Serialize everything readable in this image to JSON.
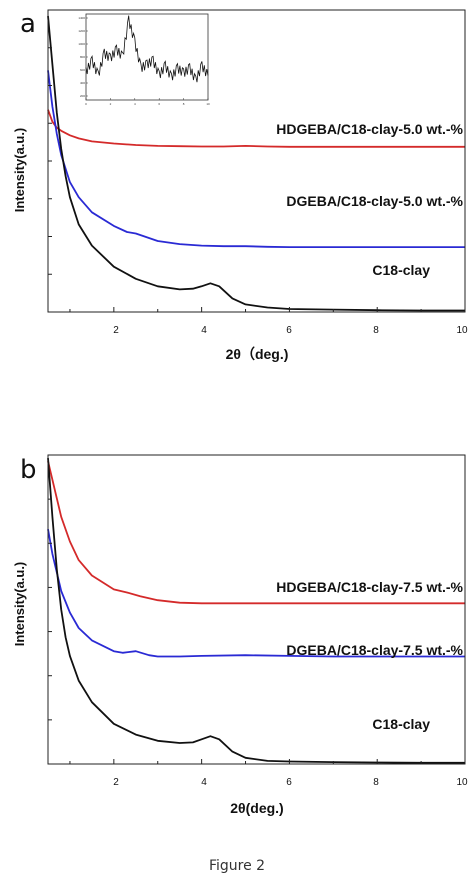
{
  "figure": {
    "caption": "Figure 2"
  },
  "chart_data": [
    {
      "type": "line",
      "panel": "a",
      "xlabel": "2θ (deg.)",
      "ylabel": "Intensity(a.u.)",
      "xlim": [
        0.5,
        10
      ],
      "xticks": [
        2,
        4,
        6,
        8,
        10
      ],
      "yticks_labeled": false,
      "grid": false,
      "legend": "labels placed directly on the curves",
      "series": [
        {
          "name": "HDGEBA/C18-clay-5.0 wt.-%",
          "color": "#d42a2a",
          "x": [
            0.5,
            0.6,
            0.7,
            0.8,
            1.0,
            1.2,
            1.5,
            2.0,
            2.5,
            3.0,
            3.5,
            4.0,
            4.5,
            5.0,
            5.5,
            6.0,
            7.0,
            8.0,
            9.0,
            10.0
          ],
          "y": [
            0.67,
            0.63,
            0.61,
            0.6,
            0.585,
            0.575,
            0.565,
            0.558,
            0.553,
            0.55,
            0.549,
            0.548,
            0.548,
            0.55,
            0.548,
            0.547,
            0.547,
            0.547,
            0.547,
            0.547
          ]
        },
        {
          "name": "DGEBA/C18-clay-5.0 wt.-%",
          "color": "#2a2ad4",
          "x": [
            0.5,
            0.6,
            0.7,
            0.8,
            1.0,
            1.2,
            1.5,
            2.0,
            2.3,
            2.5,
            2.7,
            3.0,
            3.5,
            4.0,
            4.5,
            5.0,
            5.5,
            6.0,
            7.0,
            8.0,
            9.0,
            10.0
          ],
          "y": [
            0.8,
            0.68,
            0.59,
            0.52,
            0.43,
            0.38,
            0.33,
            0.285,
            0.265,
            0.26,
            0.25,
            0.235,
            0.225,
            0.22,
            0.218,
            0.218,
            0.216,
            0.215,
            0.215,
            0.215,
            0.215,
            0.215
          ]
        },
        {
          "name": "C18-clay",
          "color": "#111111",
          "x": [
            0.5,
            0.6,
            0.7,
            0.8,
            0.9,
            1.0,
            1.2,
            1.5,
            2.0,
            2.5,
            3.0,
            3.5,
            3.8,
            4.0,
            4.2,
            4.4,
            4.7,
            5.0,
            5.5,
            6.0,
            7.0,
            8.0,
            9.0,
            10.0
          ],
          "y": [
            0.98,
            0.82,
            0.66,
            0.54,
            0.45,
            0.38,
            0.29,
            0.22,
            0.15,
            0.11,
            0.085,
            0.075,
            0.077,
            0.085,
            0.095,
            0.085,
            0.045,
            0.025,
            0.015,
            0.01,
            0.008,
            0.006,
            0.005,
            0.005
          ]
        }
      ],
      "inset": {
        "type": "line",
        "xlim": [
          0,
          10
        ],
        "x_ticks": [
          "0",
          "2",
          "4",
          "6",
          "8",
          "10"
        ],
        "y_ticks": [
          "1400",
          "1200",
          "1000",
          "800",
          "600",
          "400",
          "200"
        ],
        "series": [
          {
            "color": "#111111",
            "x": [
              0,
              0.5,
              1,
              1.5,
              2,
              2.5,
              3,
              3.5,
              4,
              4.5,
              5,
              5.5,
              6,
              6.5,
              7,
              7.5,
              8,
              8.5,
              9,
              9.5,
              10
            ],
            "y": [
              0.3,
              0.45,
              0.25,
              0.55,
              0.48,
              0.6,
              0.5,
              1.0,
              0.7,
              0.35,
              0.4,
              0.45,
              0.25,
              0.38,
              0.22,
              0.35,
              0.28,
              0.35,
              0.18,
              0.38,
              0.25
            ]
          }
        ]
      }
    },
    {
      "type": "line",
      "panel": "b",
      "xlabel": "2θ(deg.)",
      "ylabel": "Intensity(a.u.)",
      "xlim": [
        0.5,
        10
      ],
      "xticks": [
        2,
        4,
        6,
        8,
        10
      ],
      "yticks_labeled": false,
      "grid": false,
      "legend": "labels placed directly on the curves",
      "series": [
        {
          "name": "HDGEBA/C18-clay-7.5 wt.-%",
          "color": "#d42a2a",
          "x": [
            0.5,
            0.6,
            0.7,
            0.8,
            1.0,
            1.2,
            1.5,
            2.0,
            2.3,
            2.6,
            3.0,
            3.5,
            4.0,
            4.5,
            5.0,
            6.0,
            7.0,
            8.0,
            9.0,
            10.0
          ],
          "y": [
            0.98,
            0.92,
            0.86,
            0.8,
            0.72,
            0.66,
            0.61,
            0.565,
            0.555,
            0.543,
            0.53,
            0.522,
            0.52,
            0.52,
            0.52,
            0.52,
            0.52,
            0.52,
            0.52,
            0.52
          ]
        },
        {
          "name": "DGEBA/C18-clay-7.5 wt.-%",
          "color": "#2a2ad4",
          "x": [
            0.5,
            0.6,
            0.7,
            0.8,
            1.0,
            1.2,
            1.5,
            2.0,
            2.2,
            2.5,
            2.8,
            3.0,
            3.5,
            4.0,
            5.0,
            6.0,
            7.0,
            8.0,
            9.0,
            10.0
          ],
          "y": [
            0.76,
            0.68,
            0.62,
            0.56,
            0.49,
            0.44,
            0.4,
            0.365,
            0.36,
            0.365,
            0.352,
            0.348,
            0.348,
            0.35,
            0.352,
            0.35,
            0.348,
            0.348,
            0.348,
            0.348
          ]
        },
        {
          "name": "C18-clay",
          "color": "#111111",
          "x": [
            0.5,
            0.6,
            0.7,
            0.8,
            0.9,
            1.0,
            1.2,
            1.5,
            2.0,
            2.5,
            3.0,
            3.5,
            3.8,
            4.0,
            4.2,
            4.4,
            4.7,
            5.0,
            5.5,
            6.0,
            7.0,
            8.0,
            9.0,
            10.0
          ],
          "y": [
            0.99,
            0.8,
            0.63,
            0.5,
            0.41,
            0.35,
            0.27,
            0.2,
            0.13,
            0.095,
            0.075,
            0.068,
            0.07,
            0.08,
            0.09,
            0.08,
            0.04,
            0.02,
            0.01,
            0.008,
            0.006,
            0.005,
            0.004,
            0.004
          ]
        }
      ]
    }
  ],
  "panel_a": {
    "letter": "a",
    "ylabel": "Intensity(a.u.)",
    "xlabel": "2θ（deg.)",
    "xtick_labels": [
      "2",
      "4",
      "6",
      "8",
      "10"
    ],
    "labels": [
      "HDGEBA/C18-clay-5.0 wt.-%",
      "DGEBA/C18-clay-5.0 wt.-%",
      "C18-clay"
    ]
  },
  "panel_b": {
    "letter": "b",
    "ylabel": "Intensity(a.u.)",
    "xlabel": "2θ(deg.)",
    "xtick_labels": [
      "2",
      "4",
      "6",
      "8",
      "10"
    ],
    "labels": [
      "HDGEBA/C18-clay-7.5 wt.-%",
      "DGEBA/C18-clay-7.5 wt.-%",
      "C18-clay"
    ]
  }
}
